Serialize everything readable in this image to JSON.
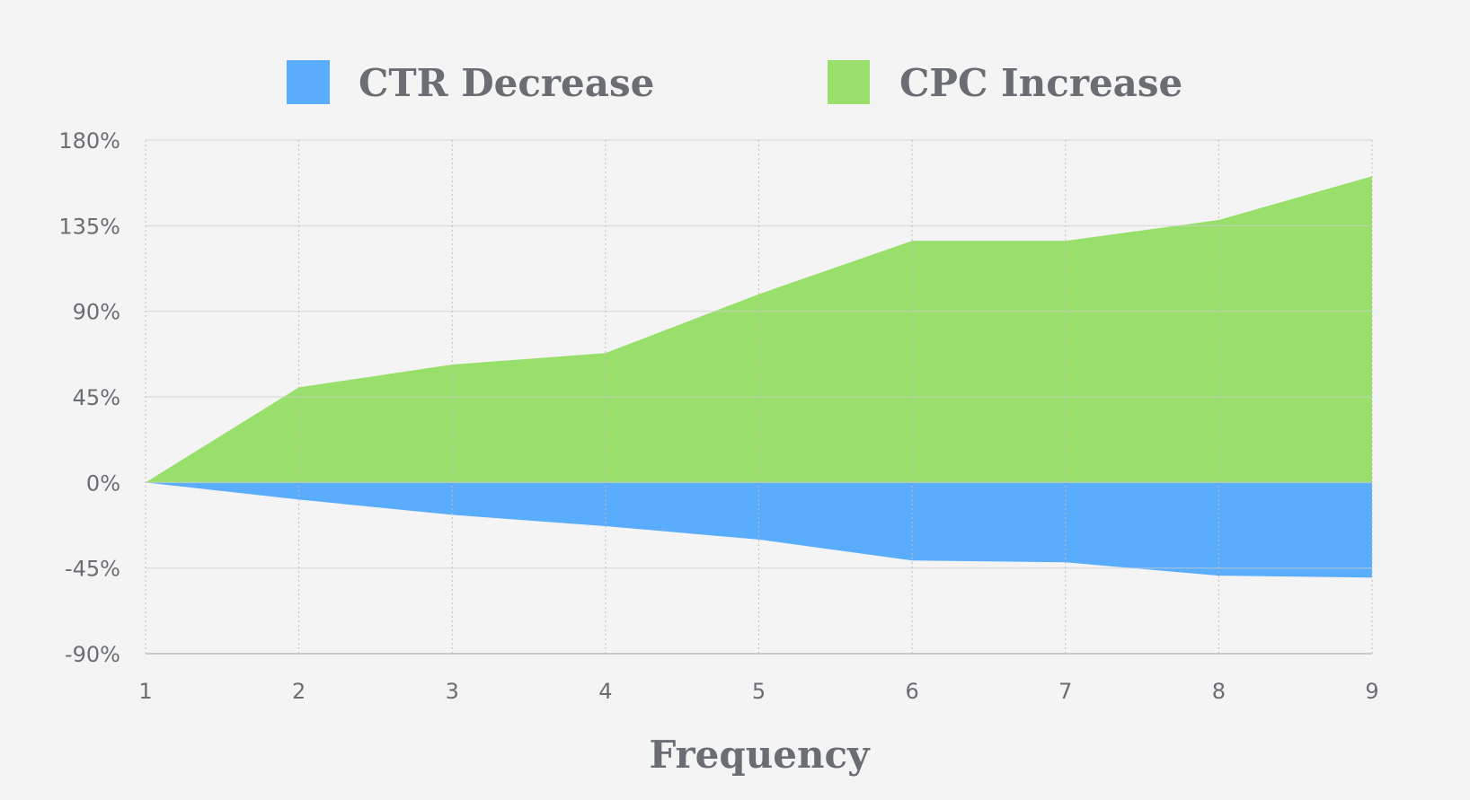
{
  "chart_data": {
    "type": "area",
    "title": "",
    "xlabel": "Frequency",
    "ylabel": "",
    "x": [
      1,
      2,
      3,
      4,
      5,
      6,
      7,
      8,
      9
    ],
    "x_tick_labels": [
      "1",
      "2",
      "3",
      "4",
      "5",
      "6",
      "7",
      "8",
      "9"
    ],
    "y_tick_labels": [
      "180%",
      "135%",
      "90%",
      "45%",
      "0%",
      "-45%",
      "-90%"
    ],
    "y_ticks": [
      180,
      135,
      90,
      45,
      0,
      -45,
      -90
    ],
    "xlim": [
      1,
      9
    ],
    "ylim": [
      -90,
      180
    ],
    "grid": true,
    "legend_position": "top",
    "series": [
      {
        "name": "CTR Decrease",
        "color": "#5aacfc",
        "values": [
          0,
          -9,
          -17,
          -23,
          -30,
          -41,
          -42,
          -49,
          -50
        ]
      },
      {
        "name": "CPC Increase",
        "color": "#98df6c",
        "values": [
          0,
          50,
          62,
          68,
          99,
          127,
          127,
          138,
          161
        ]
      }
    ]
  }
}
